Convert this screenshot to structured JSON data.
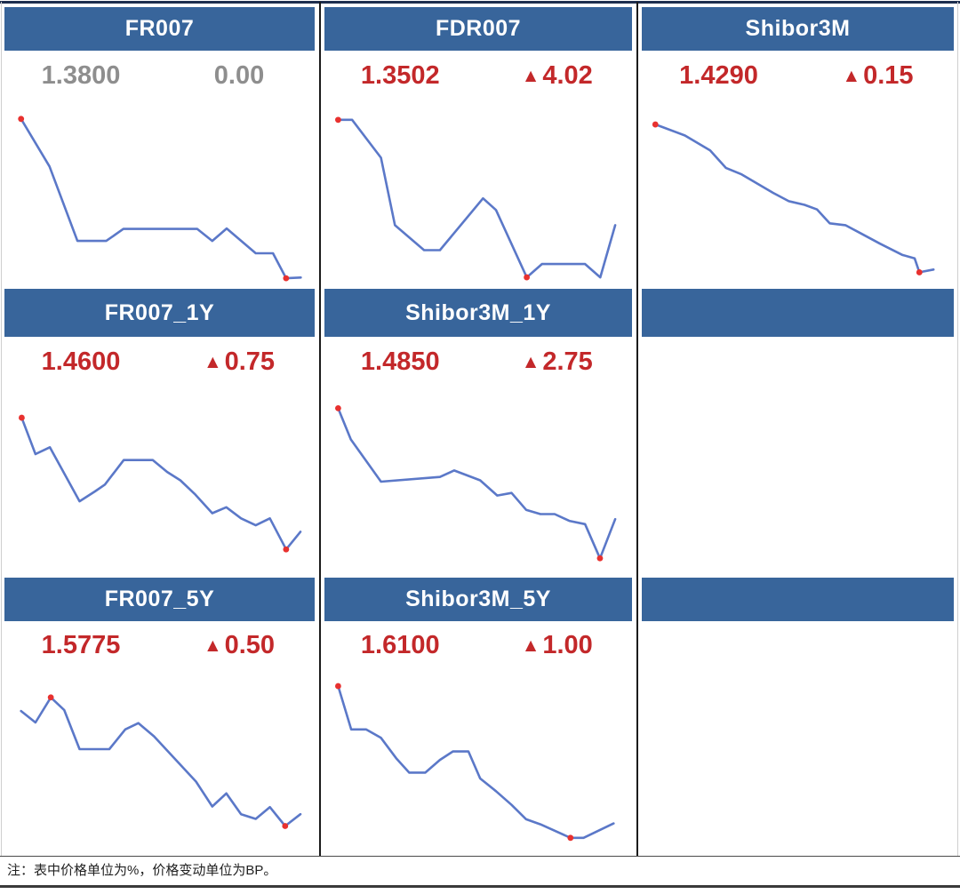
{
  "footnote": "注：表中价格单位为%，价格变动单位为BP。",
  "units": {
    "price": "%",
    "change": "BP"
  },
  "up_triangle": "▲",
  "palette": {
    "header_bg": "#38659B",
    "header_text": "#FFFFFF",
    "change_up": "#C3282A",
    "change_flat": "#8E8E8E",
    "line": "#5B78C8",
    "marker": "#E8312F",
    "divider": "#1B1B1B",
    "top_border": "#1E2F4F"
  },
  "layout_grid": [
    [
      0,
      1,
      2
    ],
    [
      3,
      4,
      null
    ],
    [
      5,
      6,
      null
    ]
  ],
  "chart_data": [
    {
      "type": "line",
      "title": "FR007",
      "value": "1.3800",
      "change": "0.00",
      "direction": "flat",
      "coords": "normalized [x, y], y measured from top of chart area",
      "points": [
        [
          0.056,
          0.1
        ],
        [
          0.147,
          0.357
        ],
        [
          0.236,
          0.76
        ],
        [
          0.328,
          0.76
        ],
        [
          0.383,
          0.695
        ],
        [
          0.619,
          0.695
        ],
        [
          0.667,
          0.76
        ],
        [
          0.713,
          0.693
        ],
        [
          0.806,
          0.827
        ],
        [
          0.861,
          0.827
        ],
        [
          0.903,
          0.962
        ],
        [
          0.95,
          0.958
        ]
      ],
      "markers": {
        "max": 0,
        "min": 10
      }
    },
    {
      "type": "line",
      "title": "FDR007",
      "value": "1.3502",
      "change": "4.02",
      "direction": "up",
      "points": [
        [
          0.047,
          0.105
        ],
        [
          0.092,
          0.105
        ],
        [
          0.185,
          0.31
        ],
        [
          0.23,
          0.675
        ],
        [
          0.324,
          0.81
        ],
        [
          0.375,
          0.81
        ],
        [
          0.514,
          0.53
        ],
        [
          0.556,
          0.593
        ],
        [
          0.655,
          0.957
        ],
        [
          0.704,
          0.885
        ],
        [
          0.843,
          0.885
        ],
        [
          0.892,
          0.957
        ],
        [
          0.94,
          0.675
        ]
      ],
      "markers": {
        "max": 0,
        "min": 8
      }
    },
    {
      "type": "line",
      "title": "Shibor3M",
      "value": "1.4290",
      "change": "0.15",
      "direction": "up",
      "points": [
        [
          0.046,
          0.13
        ],
        [
          0.14,
          0.19
        ],
        [
          0.22,
          0.27
        ],
        [
          0.27,
          0.365
        ],
        [
          0.32,
          0.4
        ],
        [
          0.42,
          0.5
        ],
        [
          0.47,
          0.545
        ],
        [
          0.52,
          0.565
        ],
        [
          0.56,
          0.59
        ],
        [
          0.6,
          0.665
        ],
        [
          0.65,
          0.675
        ],
        [
          0.7,
          0.72
        ],
        [
          0.76,
          0.775
        ],
        [
          0.83,
          0.835
        ],
        [
          0.87,
          0.855
        ],
        [
          0.885,
          0.93
        ],
        [
          0.93,
          0.915
        ]
      ],
      "markers": {
        "max": 0,
        "min": 15
      }
    },
    {
      "type": "line",
      "title": "FR007_1Y",
      "value": "1.4600",
      "change": "0.75",
      "direction": "up",
      "points": [
        [
          0.058,
          0.163
        ],
        [
          0.102,
          0.359
        ],
        [
          0.148,
          0.322
        ],
        [
          0.243,
          0.613
        ],
        [
          0.292,
          0.56
        ],
        [
          0.324,
          0.523
        ],
        [
          0.384,
          0.391
        ],
        [
          0.477,
          0.391
        ],
        [
          0.523,
          0.455
        ],
        [
          0.565,
          0.5
        ],
        [
          0.613,
          0.577
        ],
        [
          0.667,
          0.677
        ],
        [
          0.712,
          0.645
        ],
        [
          0.759,
          0.705
        ],
        [
          0.806,
          0.742
        ],
        [
          0.851,
          0.705
        ],
        [
          0.903,
          0.872
        ],
        [
          0.949,
          0.777
        ]
      ],
      "markers": {
        "max": 0,
        "min": 16
      }
    },
    {
      "type": "line",
      "title": "Shibor3M_1Y",
      "value": "1.4850",
      "change": "2.75",
      "direction": "up",
      "points": [
        [
          0.047,
          0.112
        ],
        [
          0.088,
          0.28
        ],
        [
          0.185,
          0.507
        ],
        [
          0.375,
          0.482
        ],
        [
          0.421,
          0.447
        ],
        [
          0.505,
          0.5
        ],
        [
          0.56,
          0.582
        ],
        [
          0.606,
          0.568
        ],
        [
          0.653,
          0.659
        ],
        [
          0.699,
          0.682
        ],
        [
          0.745,
          0.682
        ],
        [
          0.792,
          0.718
        ],
        [
          0.843,
          0.736
        ],
        [
          0.891,
          0.92
        ],
        [
          0.94,
          0.709
        ]
      ],
      "markers": {
        "max": 0,
        "min": 13
      }
    },
    {
      "type": "line",
      "title": "FR007_5Y",
      "value": "1.5775",
      "change": "0.50",
      "direction": "up",
      "points": [
        [
          0.056,
          0.225
        ],
        [
          0.102,
          0.288
        ],
        [
          0.151,
          0.15
        ],
        [
          0.194,
          0.22
        ],
        [
          0.243,
          0.434
        ],
        [
          0.338,
          0.434
        ],
        [
          0.389,
          0.326
        ],
        [
          0.431,
          0.291
        ],
        [
          0.481,
          0.364
        ],
        [
          0.615,
          0.612
        ],
        [
          0.667,
          0.749
        ],
        [
          0.712,
          0.677
        ],
        [
          0.759,
          0.791
        ],
        [
          0.806,
          0.817
        ],
        [
          0.851,
          0.752
        ],
        [
          0.9,
          0.856
        ],
        [
          0.949,
          0.791
        ]
      ],
      "markers": {
        "max": 2,
        "min": 15
      }
    },
    {
      "type": "line",
      "title": "Shibor3M_5Y",
      "value": "1.6100",
      "change": "1.00",
      "direction": "up",
      "points": [
        [
          0.047,
          0.088
        ],
        [
          0.089,
          0.326
        ],
        [
          0.137,
          0.326
        ],
        [
          0.185,
          0.372
        ],
        [
          0.234,
          0.484
        ],
        [
          0.276,
          0.563
        ],
        [
          0.328,
          0.563
        ],
        [
          0.375,
          0.493
        ],
        [
          0.417,
          0.447
        ],
        [
          0.467,
          0.447
        ],
        [
          0.505,
          0.595
        ],
        [
          0.556,
          0.665
        ],
        [
          0.606,
          0.74
        ],
        [
          0.653,
          0.819
        ],
        [
          0.699,
          0.847
        ],
        [
          0.796,
          0.921
        ],
        [
          0.838,
          0.921
        ],
        [
          0.935,
          0.842
        ]
      ],
      "markers": {
        "max": 0,
        "min": 15
      }
    }
  ]
}
